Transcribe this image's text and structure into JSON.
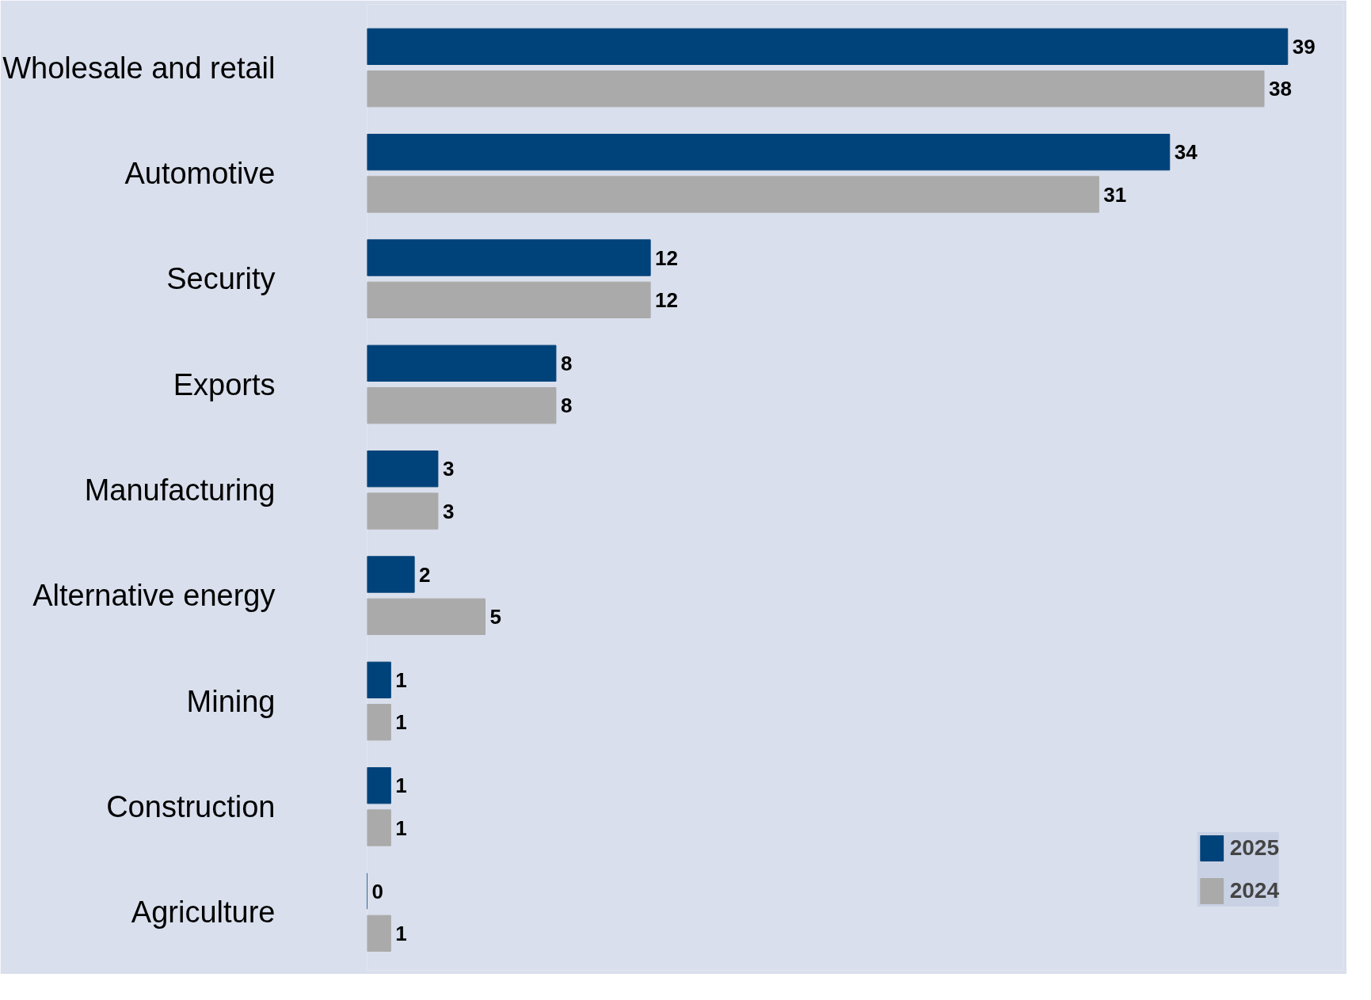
{
  "chart_data": {
    "type": "bar",
    "orientation": "horizontal",
    "categories": [
      "Wholesale and retail",
      "Automotive",
      "Security",
      "Exports",
      "Manufacturing",
      "Alternative energy",
      "Mining",
      "Construction",
      "Agriculture"
    ],
    "series": [
      {
        "name": "2025",
        "color": "#00427a",
        "values": [
          39,
          34,
          12,
          8,
          3,
          2,
          1,
          1,
          0
        ]
      },
      {
        "name": "2024",
        "color": "#aaaaaa",
        "values": [
          38,
          31,
          12,
          8,
          3,
          5,
          1,
          1,
          1
        ]
      }
    ],
    "data_labels": true,
    "legend": "bottom right",
    "grid": false,
    "tick_labels": "y"
  }
}
